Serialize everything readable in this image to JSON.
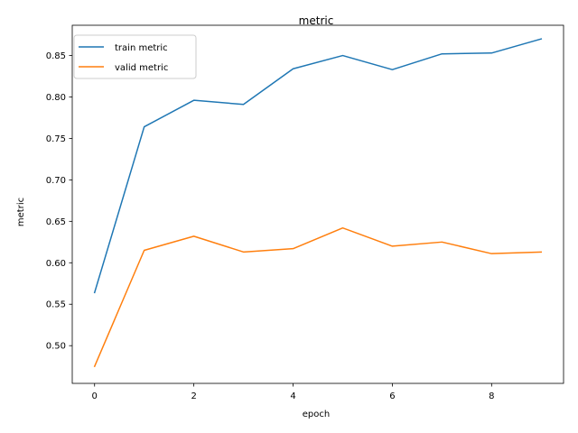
{
  "chart_data": {
    "type": "line",
    "title": "metric",
    "xlabel": "epoch",
    "ylabel": "metric",
    "x": [
      0,
      1,
      2,
      3,
      4,
      5,
      6,
      7,
      8,
      9
    ],
    "xlim": [
      -0.45,
      9.45
    ],
    "ylim": [
      0.4545,
      0.8865
    ],
    "xticks": [
      0,
      2,
      4,
      6,
      8
    ],
    "xtick_labels": [
      "0",
      "2",
      "4",
      "6",
      "8"
    ],
    "yticks": [
      0.5,
      0.55,
      0.6,
      0.65,
      0.7,
      0.75,
      0.8,
      0.85
    ],
    "ytick_labels": [
      "0.50",
      "0.55",
      "0.60",
      "0.65",
      "0.70",
      "0.75",
      "0.80",
      "0.85"
    ],
    "grid": false,
    "legend_position": "top-left",
    "series": [
      {
        "name": "train metric",
        "color": "#1f77b4",
        "values": [
          0.564,
          0.764,
          0.796,
          0.791,
          0.834,
          0.85,
          0.833,
          0.852,
          0.853,
          0.87
        ]
      },
      {
        "name": "valid metric",
        "color": "#ff7f0e",
        "values": [
          0.475,
          0.615,
          0.632,
          0.613,
          0.617,
          0.642,
          0.62,
          0.625,
          0.611,
          0.613
        ]
      }
    ]
  }
}
